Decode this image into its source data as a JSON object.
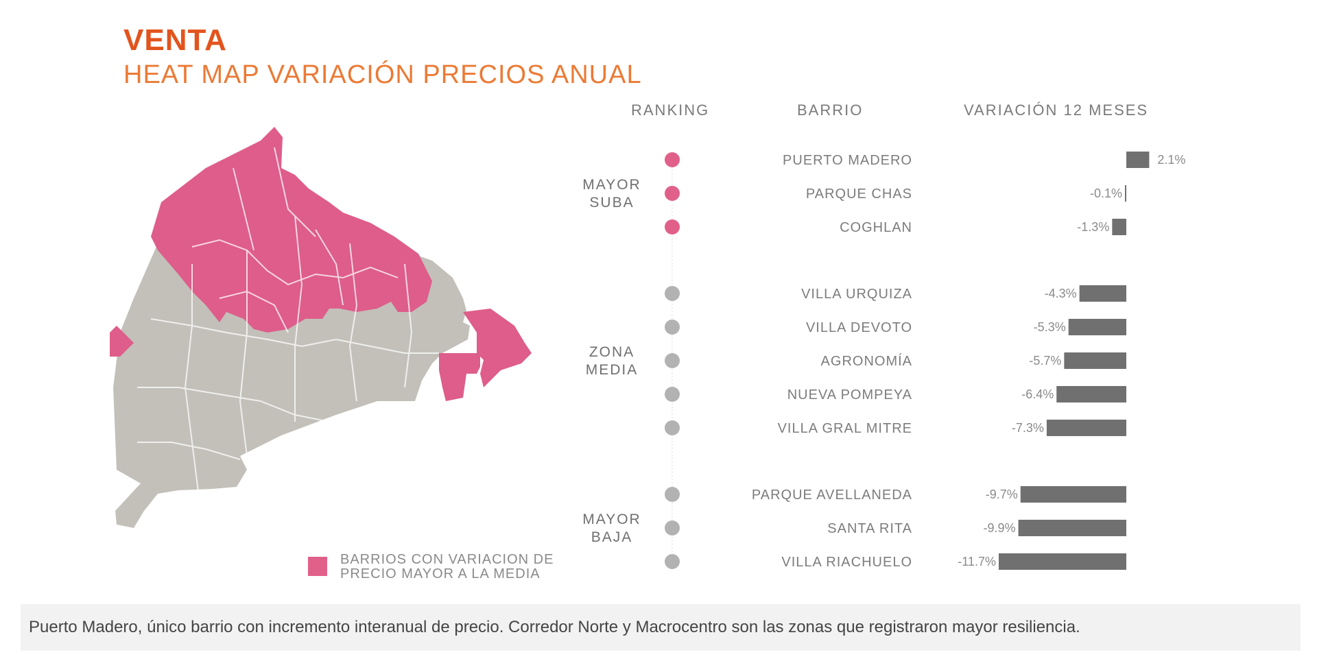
{
  "header": {
    "title": "VENTA",
    "subtitle": "HEAT MAP VARIACIÓN PRECIOS ANUAL"
  },
  "columns": {
    "ranking": "RANKING",
    "barrio": "BARRIO",
    "variacion": "VARIACIÓN 12 MESES"
  },
  "legend": {
    "line1": "BARRIOS CON VARIACION DE",
    "line2": "PRECIO MAYOR A LA MEDIA",
    "color": "#e1608a"
  },
  "footer": {
    "text": "Puerto Madero, único barrio con incremento interanual de precio. Corredor Norte y Macrocentro son las zonas que registraron mayor resiliencia."
  },
  "colors": {
    "title": "#e2541d",
    "subtitle": "#eb7a35",
    "highlight": "#e1608a",
    "map_gray": "#c2c0b9",
    "dot_gray": "#b2b2b2",
    "bar": "#707070"
  },
  "chart_data": {
    "type": "bar",
    "orientation": "horizontal",
    "unit": "%",
    "groups": [
      {
        "label_line1": "MAYOR",
        "label_line2": "SUBA",
        "dot_color": "#e1608a",
        "items": [
          {
            "barrio": "PUERTO MADERO",
            "value": 2.1,
            "label": "2.1%"
          },
          {
            "barrio": "PARQUE CHAS",
            "value": -0.1,
            "label": "-0.1%"
          },
          {
            "barrio": "COGHLAN",
            "value": -1.3,
            "label": "-1.3%"
          }
        ]
      },
      {
        "label_line1": "ZONA",
        "label_line2": "MEDIA",
        "dot_color": "#b2b2b2",
        "items": [
          {
            "barrio": "VILLA URQUIZA",
            "value": -4.3,
            "label": "-4.3%"
          },
          {
            "barrio": "VILLA DEVOTO",
            "value": -5.3,
            "label": "-5.3%"
          },
          {
            "barrio": "AGRONOMÍA",
            "value": -5.7,
            "label": "-5.7%"
          },
          {
            "barrio": "NUEVA POMPEYA",
            "value": -6.4,
            "label": "-6.4%"
          },
          {
            "barrio": "VILLA GRAL MITRE",
            "value": -7.3,
            "label": "-7.3%"
          }
        ]
      },
      {
        "label_line1": "MAYOR",
        "label_line2": "BAJA",
        "dot_color": "#b2b2b2",
        "items": [
          {
            "barrio": "PARQUE AVELLANEDA",
            "value": -9.7,
            "label": "-9.7%"
          },
          {
            "barrio": "SANTA RITA",
            "value": -9.9,
            "label": "-9.9%"
          },
          {
            "barrio": "VILLA RIACHUELO",
            "value": -11.7,
            "label": "-11.7%"
          }
        ]
      }
    ]
  }
}
